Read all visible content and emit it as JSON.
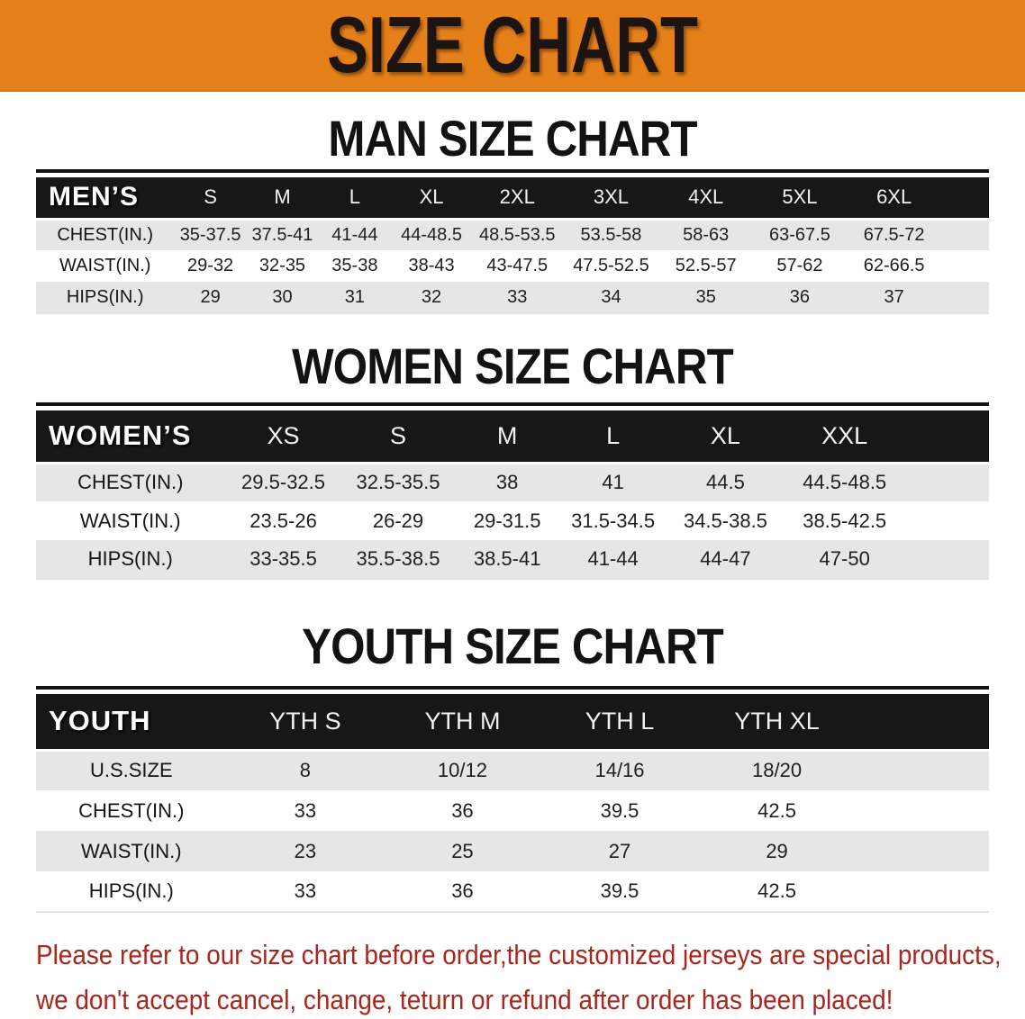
{
  "banner": {
    "title": "SIZE CHART"
  },
  "colors": {
    "banner_orange": "#e6811a",
    "header_black": "#171717",
    "row_gray": "#e6e6e6",
    "footer_red": "#a8261d"
  },
  "sections": [
    {
      "heading": "MAN SIZE CHART",
      "table": {
        "label": "MEN’S",
        "columns": [
          "S",
          "M",
          "L",
          "XL",
          "2XL",
          "3XL",
          "4XL",
          "5XL",
          "6XL"
        ],
        "rows": [
          {
            "label": "CHEST(IN.)",
            "values": [
              "35-37.5",
              "37.5-41",
              "41-44",
              "44-48.5",
              "48.5-53.5",
              "53.5-58",
              "58-63",
              "63-67.5",
              "67.5-72"
            ]
          },
          {
            "label": "WAIST(IN.)",
            "values": [
              "29-32",
              "32-35",
              "35-38",
              "38-43",
              "43-47.5",
              "47.5-52.5",
              "52.5-57",
              "57-62",
              "62-66.5"
            ]
          },
          {
            "label": "HIPS(IN.)",
            "values": [
              "29",
              "30",
              "31",
              "32",
              "33",
              "34",
              "35",
              "36",
              "37"
            ]
          }
        ]
      }
    },
    {
      "heading": "WOMEN SIZE CHART",
      "table": {
        "label": "WOMEN’S",
        "columns": [
          "XS",
          "S",
          "M",
          "L",
          "XL",
          "XXL"
        ],
        "rows": [
          {
            "label": "CHEST(IN.)",
            "values": [
              "29.5-32.5",
              "32.5-35.5",
              "38",
              "41",
              "44.5",
              "44.5-48.5"
            ]
          },
          {
            "label": "WAIST(IN.)",
            "values": [
              "23.5-26",
              "26-29",
              "29-31.5",
              "31.5-34.5",
              "34.5-38.5",
              "38.5-42.5"
            ]
          },
          {
            "label": "HIPS(IN.)",
            "values": [
              "33-35.5",
              "35.5-38.5",
              "38.5-41",
              "41-44",
              "44-47",
              "47-50"
            ]
          }
        ]
      }
    },
    {
      "heading": "YOUTH SIZE CHART",
      "table": {
        "label": "YOUTH",
        "columns": [
          "YTH S",
          "YTH M",
          "YTH L",
          "YTH XL"
        ],
        "rows": [
          {
            "label": "U.S.SIZE",
            "values": [
              "8",
              "10/12",
              "14/16",
              "18/20"
            ]
          },
          {
            "label": "CHEST(IN.)",
            "values": [
              "33",
              "36",
              "39.5",
              "42.5"
            ]
          },
          {
            "label": "WAIST(IN.)",
            "values": [
              "23",
              "25",
              "27",
              "29"
            ]
          },
          {
            "label": "HIPS(IN.)",
            "values": [
              "33",
              "36",
              "39.5",
              "42.5"
            ]
          }
        ]
      }
    }
  ],
  "footer": {
    "line1": "Please refer to our size chart before order,the customized jerseys are special products,",
    "line2": "we don't accept cancel, change, teturn or refund after order has been placed!"
  }
}
